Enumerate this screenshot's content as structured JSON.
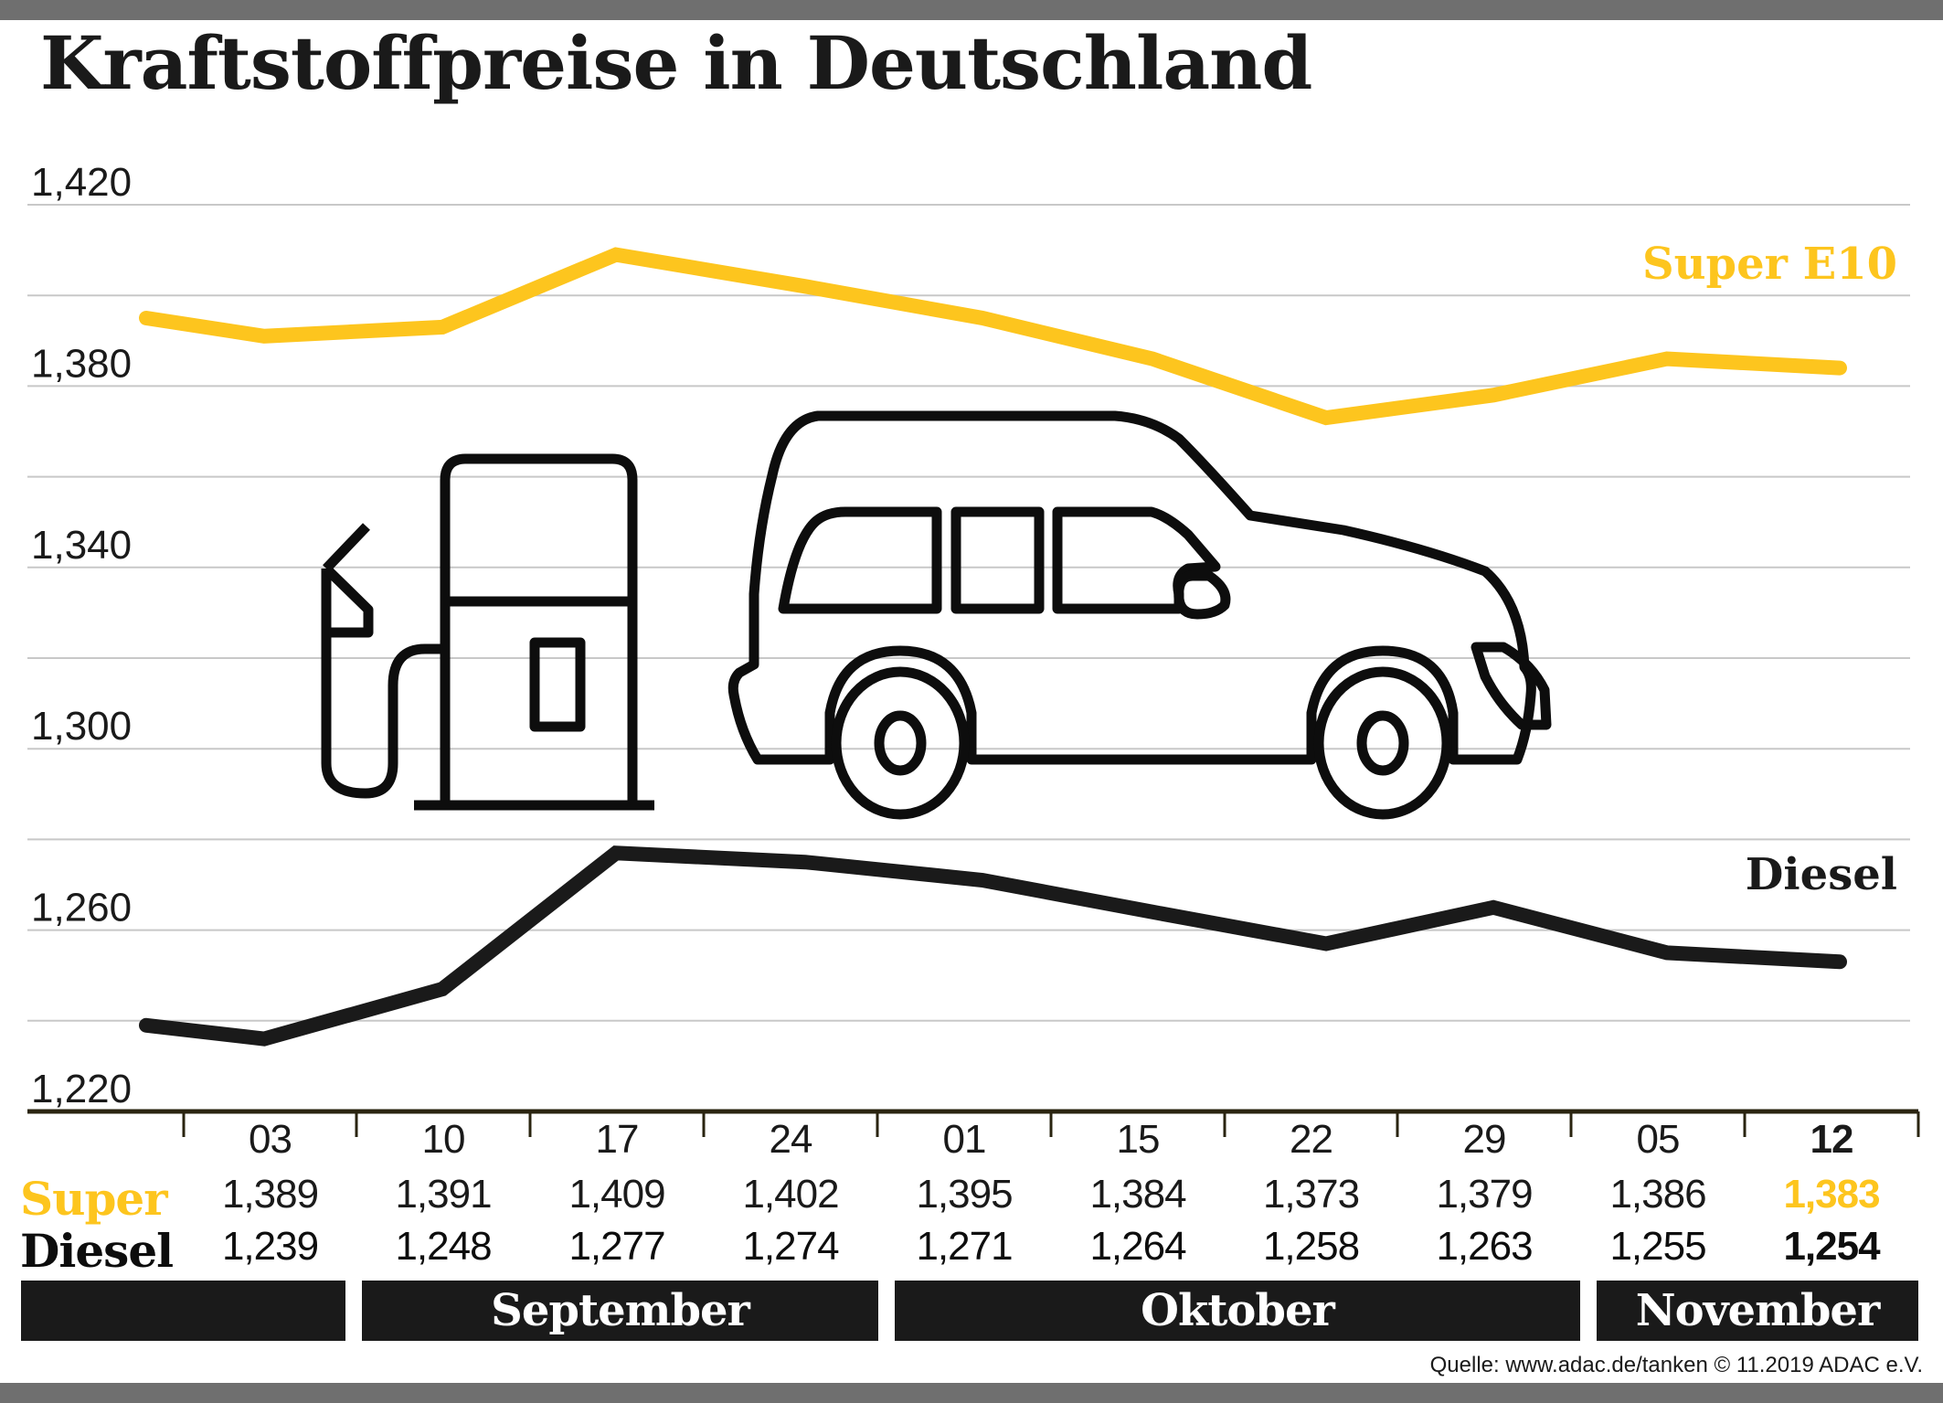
{
  "title": "Kraftstoffpreise in Deutschland",
  "colors": {
    "super": "#fdc51e",
    "diesel": "#1a1a1a",
    "grid": "#c8c8c8",
    "axis": "#2a2410",
    "bar": "#1a1a1a"
  },
  "icons": [
    "fuel-pump-icon",
    "car-icon"
  ],
  "chart_data": {
    "type": "line",
    "title": "Kraftstoffpreise in Deutschland",
    "xlabel": "",
    "ylabel": "",
    "ylim": [
      1.22,
      1.42
    ],
    "yticks": [
      1.22,
      1.26,
      1.3,
      1.34,
      1.38,
      1.42
    ],
    "ytick_labels": [
      "1,220",
      "1,260",
      "1,300",
      "1,340",
      "1,380",
      "1,420"
    ],
    "grid_step": 0.02,
    "grid": true,
    "categories": [
      "03",
      "10",
      "17",
      "24",
      "01",
      "15",
      "22",
      "29",
      "05",
      "12"
    ],
    "series": [
      {
        "name": "Super E10",
        "table_label": "Super",
        "color": "#fdc51e",
        "line_points": [
          1.395,
          1.391,
          1.393,
          1.409,
          1.402,
          1.395,
          1.386,
          1.373,
          1.378,
          1.386,
          1.384
        ],
        "values": [
          1.389,
          1.391,
          1.409,
          1.402,
          1.395,
          1.384,
          1.373,
          1.379,
          1.386,
          1.383
        ],
        "value_labels": [
          "1,389",
          "1,391",
          "1,409",
          "1,402",
          "1,395",
          "1,384",
          "1,373",
          "1,379",
          "1,386",
          "1,383"
        ]
      },
      {
        "name": "Diesel",
        "table_label": "Diesel",
        "color": "#1a1a1a",
        "line_points": [
          1.239,
          1.236,
          1.247,
          1.277,
          1.275,
          1.271,
          1.264,
          1.257,
          1.265,
          1.255,
          1.253
        ],
        "values": [
          1.239,
          1.248,
          1.277,
          1.274,
          1.271,
          1.264,
          1.258,
          1.263,
          1.255,
          1.254
        ],
        "value_labels": [
          "1,239",
          "1,248",
          "1,277",
          "1,274",
          "1,271",
          "1,264",
          "1,258",
          "1,263",
          "1,255",
          "1,254"
        ]
      }
    ],
    "months": [
      "",
      "September",
      "Oktober",
      "November"
    ],
    "highlight_last": true,
    "legend": "right-of-lines"
  },
  "source": "Quelle: www.adac.de/tanken   © 11.2019  ADAC e.V."
}
